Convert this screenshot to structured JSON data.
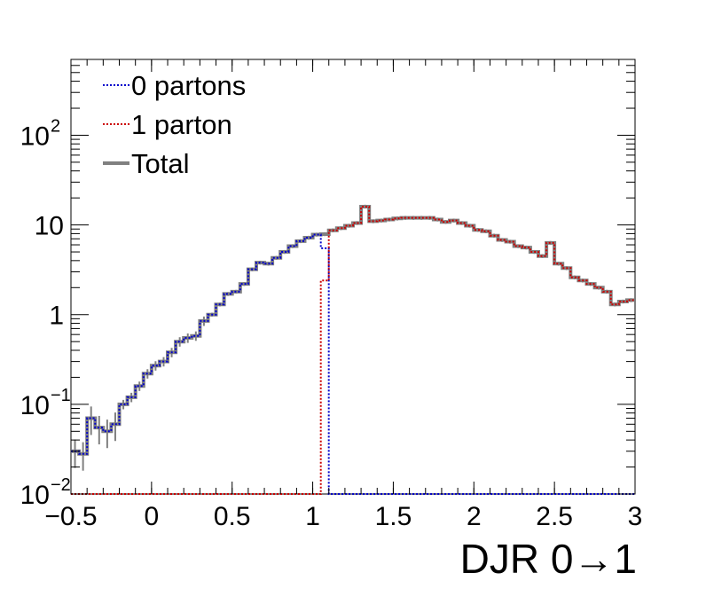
{
  "chart_data": {
    "type": "line",
    "title": "",
    "xlabel": "DJR 0→1",
    "ylabel": "",
    "xlim": [
      -0.5,
      3
    ],
    "ylim": [
      0.01,
      700
    ],
    "yscale": "log",
    "grid": false,
    "legend_position": "top-left",
    "x_ticks": [
      {
        "value": -0.5,
        "label": "−0.5"
      },
      {
        "value": 0,
        "label": "0"
      },
      {
        "value": 0.5,
        "label": "0.5"
      },
      {
        "value": 1,
        "label": "1"
      },
      {
        "value": 1.5,
        "label": "1.5"
      },
      {
        "value": 2,
        "label": "2"
      },
      {
        "value": 2.5,
        "label": "2.5"
      },
      {
        "value": 3,
        "label": "3"
      }
    ],
    "y_ticks": [
      {
        "value": 0.01,
        "base": "10",
        "exp": "−2"
      },
      {
        "value": 0.1,
        "base": "10",
        "exp": "−1"
      },
      {
        "value": 1,
        "base": "1",
        "exp": ""
      },
      {
        "value": 10,
        "base": "10",
        "exp": ""
      },
      {
        "value": 100,
        "base": "10",
        "exp": "2"
      }
    ],
    "bin_edges_start": -0.5,
    "bin_width": 0.05,
    "series": [
      {
        "name": "0 partons",
        "color": "#0000cc",
        "style": "dotted",
        "values": [
          0.03,
          0.028,
          0.07,
          0.055,
          0.05,
          0.06,
          0.1,
          0.12,
          0.16,
          0.22,
          0.27,
          0.3,
          0.38,
          0.5,
          0.55,
          0.58,
          0.85,
          1.0,
          1.3,
          1.7,
          1.8,
          2.2,
          3.2,
          3.8,
          3.7,
          4.3,
          5.0,
          5.8,
          6.6,
          7.2,
          7.8,
          5.5,
          0.01,
          0.01,
          0.01,
          0.01,
          0.01,
          0.01,
          0.01,
          0.01,
          0.01,
          0.01,
          0.01,
          0.01,
          0.01,
          0.01,
          0.01,
          0.01,
          0.01,
          0.01,
          0.01,
          0.01,
          0.01,
          0.01,
          0.01,
          0.01,
          0.01,
          0.01,
          0.01,
          0.01,
          0.01,
          0.01,
          0.01,
          0.01,
          0.01,
          0.01,
          0.01,
          0.01,
          0.01,
          0.01
        ]
      },
      {
        "name": "1 parton",
        "color": "#cc0000",
        "style": "dotted",
        "values": [
          0.01,
          0.01,
          0.01,
          0.01,
          0.01,
          0.01,
          0.01,
          0.01,
          0.01,
          0.01,
          0.01,
          0.01,
          0.01,
          0.01,
          0.01,
          0.01,
          0.01,
          0.01,
          0.01,
          0.01,
          0.01,
          0.01,
          0.01,
          0.01,
          0.01,
          0.01,
          0.01,
          0.01,
          0.01,
          0.01,
          0.01,
          2.4,
          8.7,
          9.2,
          9.8,
          10.5,
          16.0,
          11.0,
          11.2,
          11.5,
          11.8,
          12.0,
          12.0,
          12.0,
          12.0,
          11.5,
          10.8,
          11.2,
          10.5,
          9.8,
          8.8,
          8.5,
          7.6,
          6.8,
          6.5,
          5.8,
          5.6,
          5.0,
          4.5,
          6.3,
          3.7,
          3.3,
          2.6,
          2.4,
          2.2,
          2.0,
          1.8,
          1.3,
          1.4,
          1.45
        ]
      },
      {
        "name": "Total",
        "color": "#808080",
        "style": "solid",
        "values": [
          0.03,
          0.028,
          0.07,
          0.055,
          0.05,
          0.06,
          0.1,
          0.12,
          0.16,
          0.22,
          0.27,
          0.3,
          0.38,
          0.5,
          0.55,
          0.58,
          0.85,
          1.0,
          1.3,
          1.7,
          1.8,
          2.2,
          3.2,
          3.8,
          3.7,
          4.3,
          5.0,
          5.8,
          6.6,
          7.2,
          7.8,
          7.9,
          8.7,
          9.2,
          9.8,
          10.5,
          16.0,
          11.0,
          11.2,
          11.5,
          11.8,
          12.0,
          12.0,
          12.0,
          12.0,
          11.5,
          10.8,
          11.2,
          10.5,
          9.8,
          8.8,
          8.5,
          7.6,
          6.8,
          6.5,
          5.8,
          5.6,
          5.0,
          4.5,
          6.3,
          3.7,
          3.3,
          2.6,
          2.4,
          2.2,
          2.0,
          1.8,
          1.3,
          1.4,
          1.45
        ]
      }
    ]
  }
}
